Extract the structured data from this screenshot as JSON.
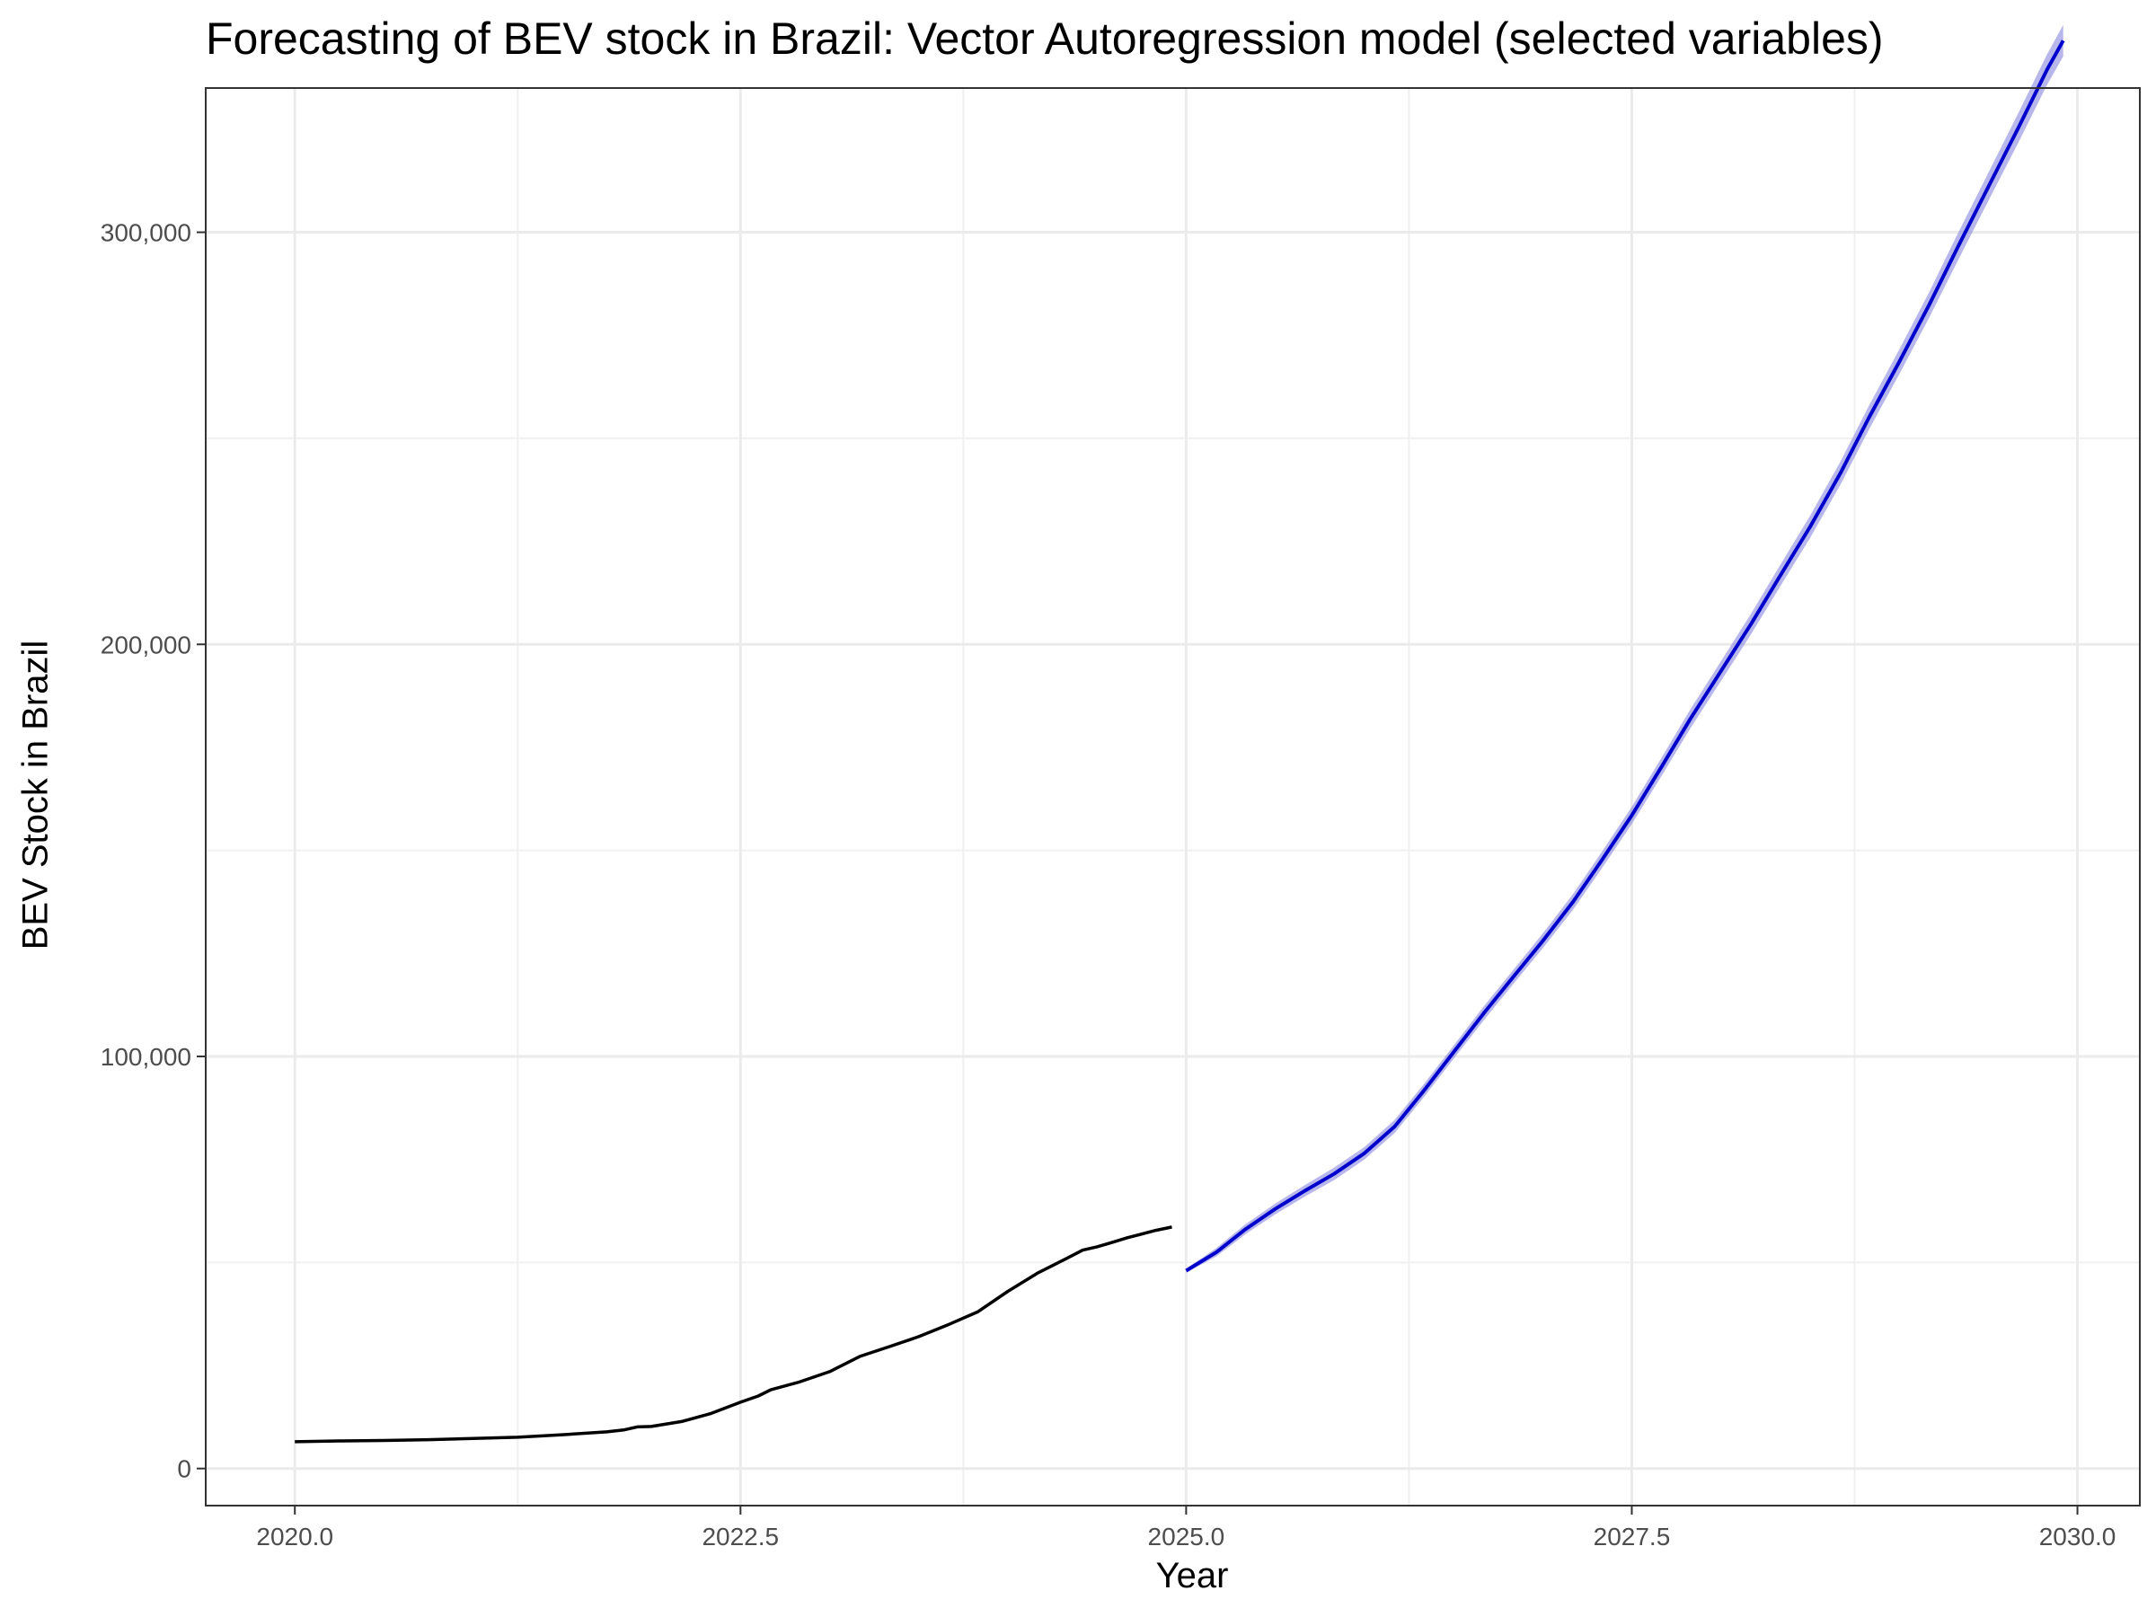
{
  "chart_data": {
    "type": "line",
    "title": "Forecasting of BEV stock in Brazil: Vector Autoregression model (selected variables)",
    "xlabel": "Year",
    "ylabel": "BEV Stock in Brazil",
    "xlim": [
      2019.5,
      2030.35
    ],
    "ylim": [
      -9000,
      335000
    ],
    "x_ticks": [
      2020.0,
      2022.5,
      2025.0,
      2027.5,
      2030.0
    ],
    "x_tick_labels": [
      "2020.0",
      "2022.5",
      "2025.0",
      "2027.5",
      "2030.0"
    ],
    "y_ticks": [
      0,
      100000,
      200000,
      300000
    ],
    "y_tick_labels": [
      "0",
      "100,000",
      "200,000",
      "300,000"
    ],
    "grid": true,
    "legend": "none",
    "colors": {
      "historical": "#000000",
      "forecast": "#0000cc",
      "interval": "#7b7bdc"
    },
    "series": [
      {
        "values_x": [
          2020.0,
          2020.25,
          2020.5,
          2020.75,
          2021.0,
          2021.25,
          2021.5,
          2021.75,
          2021.85,
          2021.92,
          2022.0,
          2022.17,
          2022.33,
          2022.5,
          2022.6,
          2022.67,
          2022.83,
          2023.0,
          2023.17,
          2023.33,
          2023.5,
          2023.67,
          2023.83,
          2024.0,
          2024.17,
          2024.33,
          2024.42,
          2024.5,
          2024.58,
          2024.67,
          2024.83,
          2024.92
        ],
        "values_y": [
          6500,
          6700,
          6800,
          7000,
          7300,
          7600,
          8200,
          8900,
          9400,
          10100,
          10200,
          11400,
          13300,
          16100,
          17600,
          19100,
          21000,
          23500,
          27200,
          29500,
          32000,
          35000,
          38000,
          43000,
          47500,
          51000,
          53000,
          53800,
          54800,
          56000,
          57800,
          58600
        ]
      },
      {
        "values_x": [
          2025.0,
          2025.17,
          2025.33,
          2025.5,
          2025.67,
          2025.83,
          2026.0,
          2026.17,
          2026.33,
          2026.5,
          2026.67,
          2026.83,
          2027.0,
          2027.17,
          2027.33,
          2027.5,
          2027.67,
          2027.83,
          2028.0,
          2028.17,
          2028.33,
          2028.5,
          2028.67,
          2028.83,
          2029.0,
          2029.17,
          2029.33,
          2029.5,
          2029.67,
          2029.83,
          2029.92
        ],
        "values_y": [
          48000,
          52500,
          58000,
          63000,
          67500,
          71500,
          76500,
          83000,
          91500,
          101000,
          110500,
          119000,
          128000,
          137500,
          147500,
          158500,
          170500,
          182000,
          193500,
          205000,
          216500,
          228500,
          241500,
          255000,
          268500,
          282500,
          296500,
          311000,
          325500,
          339500,
          346500
        ],
        "lower": [
          47500,
          51500,
          56800,
          61700,
          66100,
          70000,
          75000,
          81400,
          89900,
          99400,
          108800,
          117300,
          126200,
          135600,
          145500,
          156400,
          168300,
          179700,
          191100,
          202500,
          213900,
          225800,
          238700,
          252100,
          265500,
          279400,
          293200,
          307600,
          321900,
          335800,
          342700
        ],
        "upper": [
          48500,
          53500,
          59200,
          64300,
          68900,
          73000,
          78000,
          84600,
          93100,
          102600,
          112200,
          120700,
          129800,
          139400,
          149500,
          160600,
          172700,
          184300,
          195900,
          207500,
          219100,
          231200,
          244300,
          257900,
          271500,
          285600,
          299800,
          314400,
          329100,
          343200,
          350300
        ]
      }
    ]
  }
}
